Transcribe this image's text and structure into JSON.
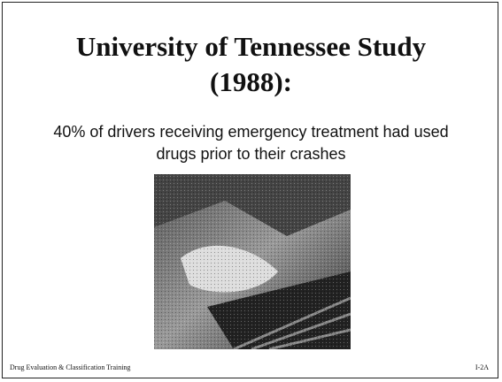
{
  "slide": {
    "title": "University of Tennessee Study (1988):",
    "body": "40% of drivers receiving emergency treatment had used drugs prior to their crashes",
    "footer": {
      "left": "Drug Evaluation & Classification Training",
      "right": "I-2A"
    }
  }
}
